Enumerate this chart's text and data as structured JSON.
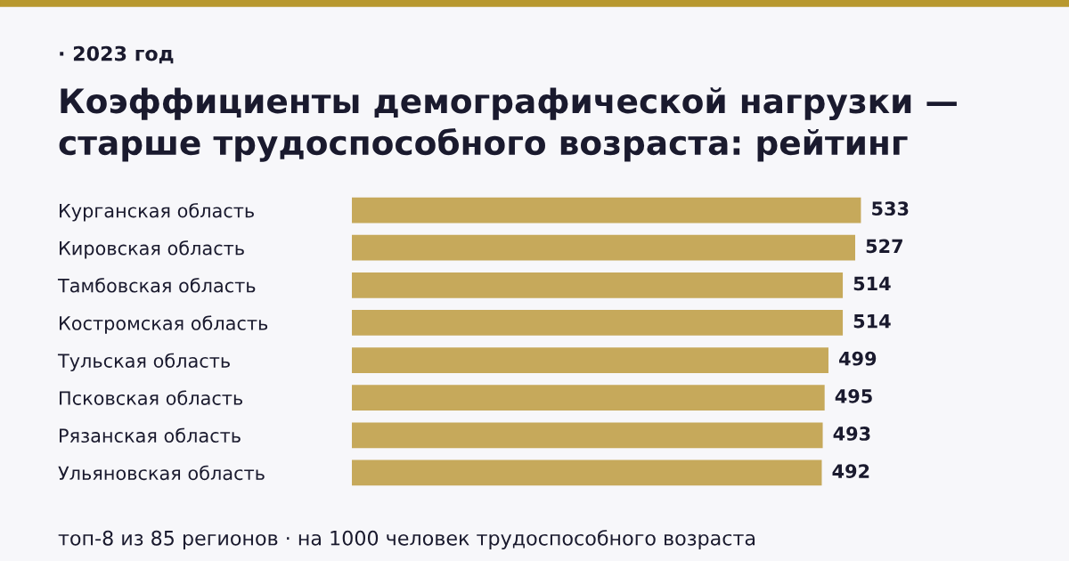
{
  "chart_data": {
    "type": "bar",
    "orientation": "horizontal",
    "subtitle": "· 2023 год",
    "title": "Коэффициенты демографической нагрузки —\nстарше трудоспособного возраста: рейтинг",
    "categories": [
      "Курганская область",
      "Кировская область",
      "Тамбовская область",
      "Костромская область",
      "Тульская область",
      "Псковская область",
      "Рязанская область",
      "Ульяновская область"
    ],
    "values": [
      533,
      527,
      514,
      514,
      499,
      495,
      493,
      492
    ],
    "color": "#c6a95b",
    "data_labels": true,
    "grid": false,
    "legend": false,
    "tick_labels": "y",
    "annotations": [
      "топ-8 из 85 регионов · на 1000 человек трудоспособного возраста"
    ]
  }
}
